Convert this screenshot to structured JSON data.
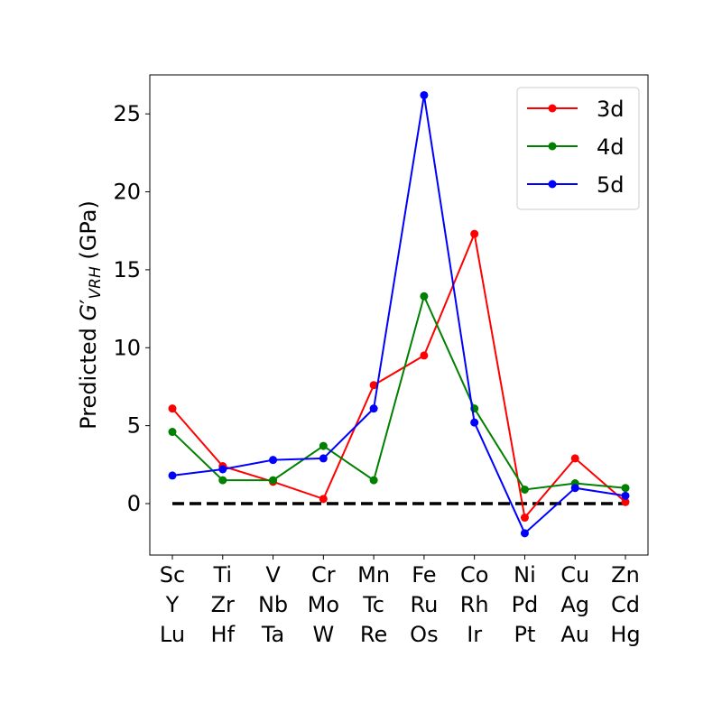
{
  "chart_data": {
    "type": "line",
    "title": "",
    "xlabel": "",
    "ylabel": {
      "prefix": "Predicted ",
      "symbol": "G",
      "prime": "′",
      "subscript": "VRH",
      "suffix": " (GPa)"
    },
    "categories": [
      [
        "Sc",
        "Y",
        "Lu"
      ],
      [
        "Ti",
        "Zr",
        "Hf"
      ],
      [
        "V",
        "Nb",
        "Ta"
      ],
      [
        "Cr",
        "Mo",
        "W"
      ],
      [
        "Mn",
        "Tc",
        "Re"
      ],
      [
        "Fe",
        "Ru",
        "Os"
      ],
      [
        "Co",
        "Rh",
        "Ir"
      ],
      [
        "Ni",
        "Pd",
        "Pt"
      ],
      [
        "Cu",
        "Ag",
        "Au"
      ],
      [
        "Zn",
        "Cd",
        "Hg"
      ]
    ],
    "ylim": [
      -3.3,
      27.5
    ],
    "yticks": [
      0,
      5,
      10,
      15,
      20,
      25
    ],
    "grid": false,
    "legend_position": "top-right",
    "reference_line": {
      "y": 0,
      "style": "dashed",
      "color": "#000000"
    },
    "series": [
      {
        "name": "3d",
        "color": "#ff0000",
        "values": [
          6.1,
          2.4,
          1.4,
          0.3,
          7.6,
          9.5,
          17.3,
          -0.9,
          2.9,
          0.1
        ]
      },
      {
        "name": "4d",
        "color": "#008000",
        "values": [
          4.6,
          1.5,
          1.5,
          3.7,
          1.5,
          13.3,
          6.1,
          0.9,
          1.3,
          1.0
        ]
      },
      {
        "name": "5d",
        "color": "#0000ff",
        "values": [
          1.8,
          2.2,
          2.8,
          2.9,
          6.1,
          26.2,
          5.2,
          -1.9,
          1.0,
          0.5
        ]
      }
    ]
  }
}
